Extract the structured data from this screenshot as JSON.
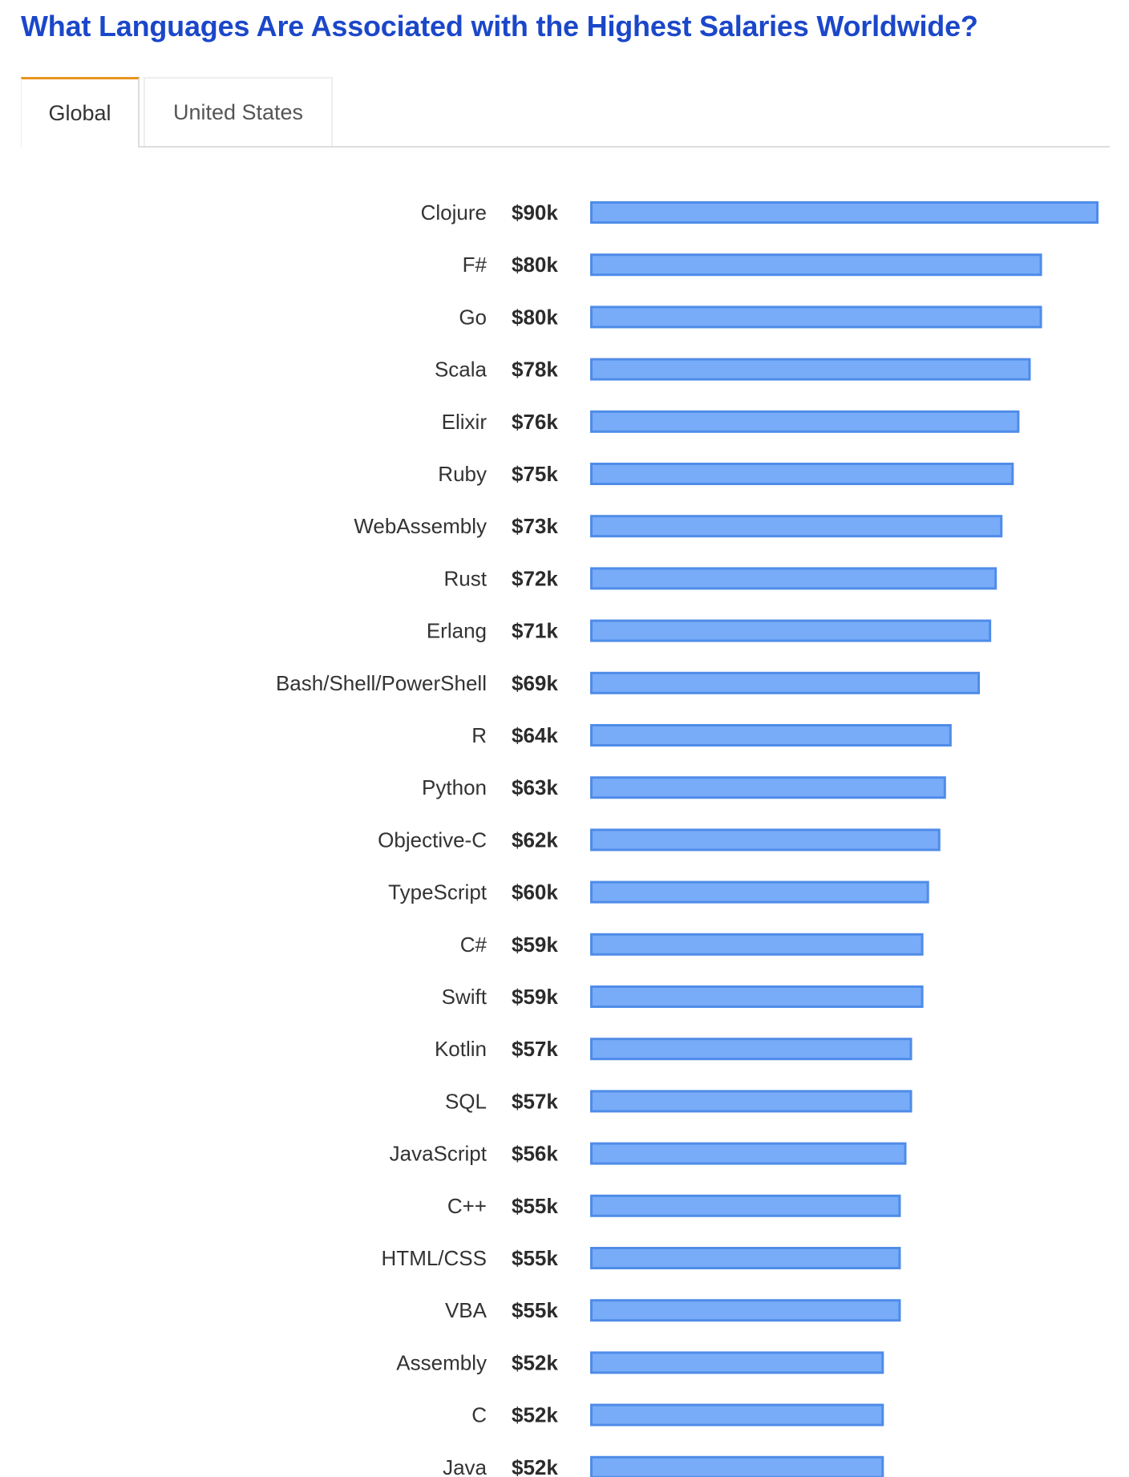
{
  "title": "What Languages Are Associated with the Highest Salaries Worldwide?",
  "tabs": [
    {
      "label": "Global",
      "active": true
    },
    {
      "label": "United States",
      "active": false
    }
  ],
  "colors": {
    "bar_fill": "#78acf8",
    "bar_border": "#4f8ce8",
    "title": "#1b47c9",
    "tab_accent": "#e8931e"
  },
  "chart_data": {
    "type": "bar",
    "orientation": "horizontal",
    "title": "What Languages Are Associated with the Highest Salaries Worldwide?",
    "categories": [
      "Clojure",
      "F#",
      "Go",
      "Scala",
      "Elixir",
      "Ruby",
      "WebAssembly",
      "Rust",
      "Erlang",
      "Bash/Shell/PowerShell",
      "R",
      "Python",
      "Objective-C",
      "TypeScript",
      "C#",
      "Swift",
      "Kotlin",
      "SQL",
      "JavaScript",
      "C++",
      "HTML/CSS",
      "VBA",
      "Assembly",
      "C",
      "Java"
    ],
    "values": [
      90,
      80,
      80,
      78,
      76,
      75,
      73,
      72,
      71,
      69,
      64,
      63,
      62,
      60,
      59,
      59,
      57,
      57,
      56,
      55,
      55,
      55,
      52,
      52,
      52
    ],
    "value_labels": [
      "$90k",
      "$80k",
      "$80k",
      "$78k",
      "$76k",
      "$75k",
      "$73k",
      "$72k",
      "$71k",
      "$69k",
      "$64k",
      "$63k",
      "$62k",
      "$60k",
      "$59k",
      "$59k",
      "$57k",
      "$57k",
      "$56k",
      "$55k",
      "$55k",
      "$55k",
      "$52k",
      "$52k",
      "$52k"
    ],
    "unit": "USD thousands",
    "xlim": [
      0,
      90
    ],
    "grid": false,
    "legend": "none"
  }
}
